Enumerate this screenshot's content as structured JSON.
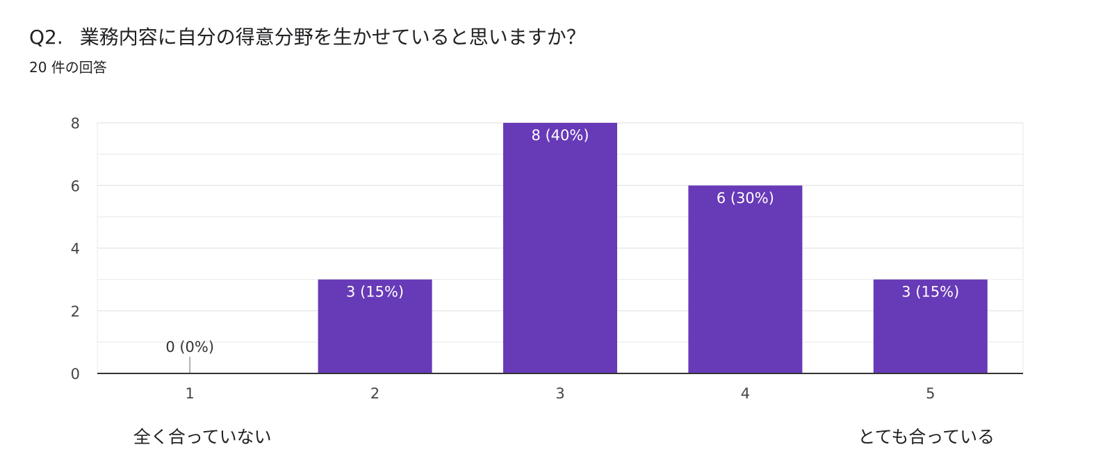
{
  "question": {
    "number": "Q2.",
    "text": "業務内容に自分の得意分野を生かせていると思いますか？",
    "response_count": "20 件の回答"
  },
  "colors": {
    "bar": "#673ab7",
    "grid": "#e8e8e8",
    "axis": "#333333",
    "tick_text": "#444444",
    "label_inside": "#ffffff",
    "label_outside": "#333333"
  },
  "chart_data": {
    "type": "bar",
    "categories": [
      "1",
      "2",
      "3",
      "4",
      "5"
    ],
    "values": [
      0,
      3,
      8,
      6,
      3
    ],
    "data_labels": [
      "0 (0%)",
      "3 (15%)",
      "8 (40%)",
      "6 (30%)",
      "3 (15%)"
    ],
    "scale_labels": {
      "low": "全く合っていない",
      "high": "とても合っている"
    },
    "yticks": [
      0,
      2,
      4,
      6,
      8
    ],
    "ylim": [
      0,
      8
    ],
    "grid": true,
    "legend": "none"
  }
}
